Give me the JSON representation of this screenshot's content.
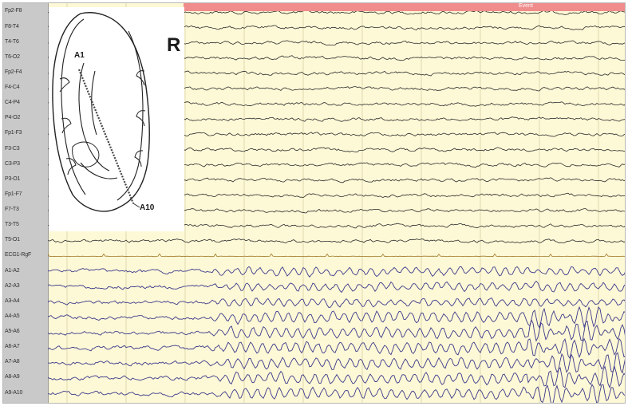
{
  "figure": {
    "side_marker": "R",
    "electrode_top_label": "A1",
    "electrode_bottom_label": "A10",
    "event_marker_text": "Event"
  },
  "montage": {
    "surface_channels": [
      "Fp2-F8",
      "F8-T4",
      "T4-T6",
      "T6-O2",
      "Fp2-F4",
      "F4-C4",
      "C4-P4",
      "P4-O2",
      "Fp1-F3",
      "F3-C3",
      "C3-P3",
      "P3-O1",
      "Fp1-F7",
      "F7-T3",
      "T3-T5",
      "T5-O1",
      "ECG1-RgF"
    ],
    "depth_channels": [
      "A1-A2",
      "A2-A3",
      "A3-A4",
      "A4-A5",
      "A5-A6",
      "A6-A7",
      "A7-A8",
      "A8-A9",
      "A9-A10"
    ]
  },
  "colors": {
    "background": "#fdf8d6",
    "surface_trace": "#2b2b2b",
    "depth_trace": "#3d3a8c",
    "ecg_trace": "#a07a2a",
    "event_bar": "#f08c8c",
    "grid": "#d9d2a6",
    "label_panel": "#c9c9c9"
  }
}
